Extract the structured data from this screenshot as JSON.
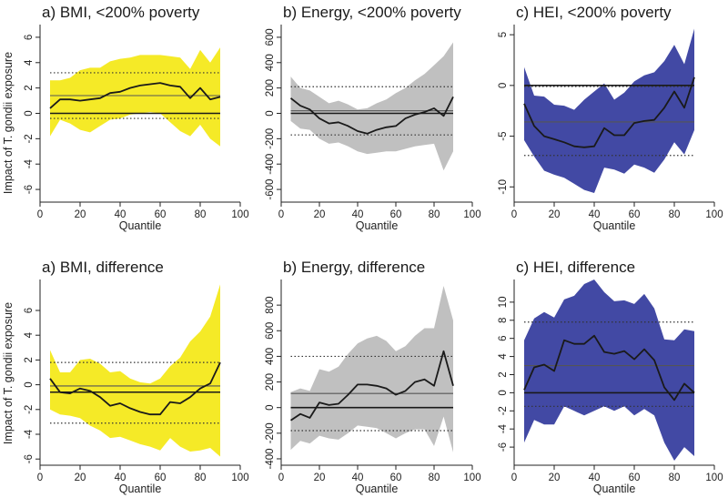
{
  "figure": {
    "ylabel": "Impact of T. gondii exposure"
  },
  "chart_data": [
    {
      "type": "area",
      "title": "a) BMI, <200% poverty",
      "xlabel": "Quantile",
      "xlim": [
        0,
        100
      ],
      "xticks": [
        0,
        20,
        40,
        60,
        80,
        100
      ],
      "ylim": [
        -7,
        7
      ],
      "yticks": [
        -6,
        -4,
        -2,
        0,
        2,
        4,
        6
      ],
      "band_color": "#f5ea27",
      "line_color": "#1a1a1a",
      "x": [
        5,
        10,
        15,
        20,
        25,
        30,
        35,
        40,
        45,
        50,
        55,
        60,
        65,
        70,
        75,
        80,
        85,
        90
      ],
      "estimate": [
        0.4,
        1.1,
        1.1,
        1.0,
        1.1,
        1.2,
        1.6,
        1.7,
        2.0,
        2.2,
        2.3,
        2.4,
        2.2,
        2.1,
        1.2,
        2.0,
        1.1,
        1.3
      ],
      "ci_upper": [
        2.6,
        2.6,
        2.8,
        3.4,
        3.6,
        3.6,
        4.1,
        4.3,
        4.4,
        4.6,
        4.6,
        4.6,
        4.5,
        4.4,
        3.5,
        5.0,
        4.0,
        5.2
      ],
      "ci_lower": [
        -1.8,
        -0.5,
        -0.8,
        -1.3,
        -1.5,
        -1.0,
        -0.5,
        -0.4,
        -0.1,
        0.0,
        0.1,
        0.0,
        -0.7,
        -1.4,
        -1.8,
        -0.9,
        -2.0,
        -2.6
      ],
      "ref_zero": 0,
      "ref_mean": 1.4,
      "ref_upper_dotted": 3.2,
      "ref_lower_dotted": -0.4
    },
    {
      "type": "area",
      "title": "b) Energy, <200% poverty",
      "xlabel": "Quantile",
      "xlim": [
        0,
        100
      ],
      "xticks": [
        0,
        20,
        40,
        60,
        80,
        100
      ],
      "ylim": [
        -700,
        700
      ],
      "yticks": [
        -600,
        -400,
        -200,
        0,
        200,
        400,
        600
      ],
      "band_color": "#c0c0c0",
      "line_color": "#1a1a1a",
      "x": [
        5,
        10,
        15,
        20,
        25,
        30,
        35,
        40,
        45,
        50,
        55,
        60,
        65,
        70,
        75,
        80,
        85,
        90
      ],
      "estimate": [
        120,
        60,
        30,
        -40,
        -80,
        -70,
        -100,
        -140,
        -160,
        -130,
        -110,
        -100,
        -40,
        -10,
        10,
        40,
        -20,
        130
      ],
      "ci_upper": [
        290,
        200,
        180,
        130,
        80,
        100,
        70,
        30,
        40,
        80,
        110,
        160,
        200,
        260,
        310,
        380,
        450,
        560
      ],
      "ci_lower": [
        -60,
        -120,
        -130,
        -200,
        -240,
        -230,
        -260,
        -300,
        -320,
        -310,
        -300,
        -300,
        -280,
        -260,
        -250,
        -240,
        -450,
        -300
      ],
      "ref_zero": 0,
      "ref_mean": 20,
      "ref_upper_dotted": 210,
      "ref_lower_dotted": -170
    },
    {
      "type": "area",
      "title": "c) HEI, <200% poverty",
      "xlabel": "Quantile",
      "xlim": [
        0,
        100
      ],
      "xticks": [
        0,
        20,
        40,
        60,
        80,
        100
      ],
      "ylim": [
        -11.5,
        6
      ],
      "yticks": [
        -10,
        -5,
        0,
        5
      ],
      "band_color": "#4249a4",
      "line_color": "#1a1a1a",
      "x": [
        5,
        10,
        15,
        20,
        25,
        30,
        35,
        40,
        45,
        50,
        55,
        60,
        65,
        70,
        75,
        80,
        85,
        90
      ],
      "estimate": [
        -1.8,
        -4.0,
        -5.0,
        -5.3,
        -5.6,
        -6.0,
        -6.1,
        -6.0,
        -4.2,
        -4.9,
        -4.9,
        -3.7,
        -3.5,
        -3.4,
        -2.2,
        -0.6,
        -2.2,
        0.8
      ],
      "ci_upper": [
        1.8,
        -1.0,
        -1.1,
        -1.9,
        -2.0,
        -2.4,
        -1.4,
        -0.6,
        0.2,
        -1.4,
        -0.7,
        0.4,
        1.0,
        1.3,
        2.4,
        4.0,
        2.1,
        5.6
      ],
      "ci_lower": [
        -5.4,
        -7.0,
        -8.4,
        -8.8,
        -9.1,
        -9.7,
        -10.3,
        -10.6,
        -8.1,
        -8.3,
        -8.7,
        -7.8,
        -8.1,
        -8.6,
        -7.3,
        -5.6,
        -6.8,
        -4.4
      ],
      "ref_zero": 0,
      "ref_mean": -3.6,
      "ref_upper_dotted": -0.1,
      "ref_lower_dotted": -6.9
    },
    {
      "type": "area",
      "title": "a) BMI, difference",
      "xlabel": "Quantile",
      "xlim": [
        0,
        100
      ],
      "xticks": [
        0,
        20,
        40,
        60,
        80,
        100
      ],
      "ylim": [
        -6.5,
        8.5
      ],
      "yticks": [
        -6,
        -4,
        -2,
        0,
        2,
        4,
        6
      ],
      "band_color": "#f5ea27",
      "line_color": "#1a1a1a",
      "x": [
        5,
        10,
        15,
        20,
        25,
        30,
        35,
        40,
        45,
        50,
        55,
        60,
        65,
        70,
        75,
        80,
        85,
        90
      ],
      "estimate": [
        0.5,
        -0.6,
        -0.7,
        -0.3,
        -0.5,
        -1.0,
        -1.7,
        -1.5,
        -1.9,
        -2.2,
        -2.4,
        -2.4,
        -1.4,
        -1.5,
        -1.0,
        -0.3,
        0.1,
        1.8
      ],
      "ci_upper": [
        2.8,
        1.0,
        1.0,
        2.0,
        2.1,
        1.7,
        1.0,
        1.1,
        0.5,
        0.2,
        0.1,
        0.5,
        1.5,
        2.2,
        3.5,
        4.3,
        5.5,
        8.1
      ],
      "ci_lower": [
        -2.0,
        -2.4,
        -2.5,
        -2.7,
        -3.3,
        -3.7,
        -4.3,
        -4.2,
        -4.5,
        -4.8,
        -5.0,
        -5.3,
        -4.3,
        -5.0,
        -5.4,
        -5.3,
        -5.1,
        -5.8
      ],
      "ref_zero": -0.6,
      "ref_mean": -0.1,
      "ref_upper_dotted": 1.8,
      "ref_lower_dotted": -3.1
    },
    {
      "type": "area",
      "title": "b) Energy, difference",
      "xlabel": "Quantile",
      "xlim": [
        0,
        100
      ],
      "xticks": [
        0,
        20,
        40,
        60,
        80,
        100
      ],
      "ylim": [
        -450,
        1000
      ],
      "yticks": [
        -400,
        -200,
        0,
        200,
        400,
        600,
        800
      ],
      "band_color": "#c0c0c0",
      "line_color": "#1a1a1a",
      "x": [
        5,
        10,
        15,
        20,
        25,
        30,
        35,
        40,
        45,
        50,
        55,
        60,
        65,
        70,
        75,
        80,
        85,
        90
      ],
      "estimate": [
        -100,
        -50,
        -80,
        40,
        20,
        30,
        100,
        180,
        180,
        170,
        150,
        100,
        130,
        200,
        220,
        170,
        440,
        170
      ],
      "ci_upper": [
        120,
        150,
        130,
        300,
        280,
        320,
        420,
        500,
        540,
        560,
        520,
        440,
        480,
        560,
        620,
        620,
        950,
        680
      ],
      "ci_lower": [
        -330,
        -260,
        -280,
        -220,
        -240,
        -250,
        -200,
        -140,
        -150,
        -160,
        -200,
        -240,
        -200,
        -170,
        -170,
        -300,
        -70,
        -350
      ],
      "ref_zero": 0,
      "ref_mean": 110,
      "ref_upper_dotted": 400,
      "ref_lower_dotted": -180
    },
    {
      "type": "area",
      "title": "c) HEI, difference",
      "xlabel": "Quantile",
      "xlim": [
        0,
        100
      ],
      "xticks": [
        0,
        20,
        40,
        60,
        80,
        100
      ],
      "ylim": [
        -8,
        12.5
      ],
      "yticks": [
        -6,
        -4,
        -2,
        0,
        2,
        4,
        6,
        8,
        10
      ],
      "band_color": "#4249a4",
      "line_color": "#1a1a1a",
      "x": [
        5,
        10,
        15,
        20,
        25,
        30,
        35,
        40,
        45,
        50,
        55,
        60,
        65,
        70,
        75,
        80,
        85,
        90
      ],
      "estimate": [
        0.3,
        2.8,
        3.1,
        2.4,
        5.8,
        5.4,
        5.4,
        6.3,
        4.5,
        4.3,
        4.6,
        3.7,
        4.8,
        3.6,
        0.6,
        -0.8,
        1.0,
        0.0
      ],
      "ci_upper": [
        5.8,
        8.2,
        8.9,
        8.3,
        10.3,
        10.7,
        12.0,
        12.5,
        11.1,
        10.1,
        10.2,
        9.8,
        10.9,
        9.3,
        5.9,
        5.8,
        7.0,
        6.8
      ],
      "ci_lower": [
        -5.5,
        -3.0,
        -3.5,
        -3.5,
        -1.5,
        -2.0,
        -2.5,
        -2.0,
        -1.5,
        -2.0,
        -1.5,
        -2.5,
        -1.8,
        -2.5,
        -5.5,
        -7.5,
        -6.0,
        -7.0
      ],
      "ref_zero": 0,
      "ref_mean": 3.0,
      "ref_upper_dotted": 7.8,
      "ref_lower_dotted": -1.5
    }
  ]
}
